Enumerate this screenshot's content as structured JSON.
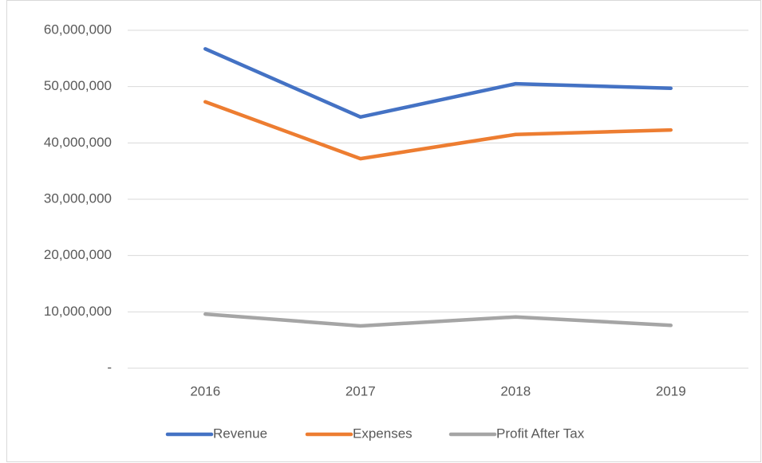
{
  "chart_data": {
    "type": "line",
    "categories": [
      "2016",
      "2017",
      "2018",
      "2019"
    ],
    "series": [
      {
        "name": "Revenue",
        "color": "#4472c4",
        "values": [
          56700000,
          44600000,
          50500000,
          49700000
        ]
      },
      {
        "name": "Expenses",
        "color": "#ed7d31",
        "values": [
          47300000,
          37200000,
          41500000,
          42300000
        ]
      },
      {
        "name": "Profit After Tax",
        "color": "#a5a5a5",
        "values": [
          9600000,
          7500000,
          9100000,
          7600000
        ]
      }
    ],
    "ylim": [
      0,
      60000000
    ],
    "yticks": [
      {
        "value": 0,
        "label": "-"
      },
      {
        "value": 10000000,
        "label": "10,000,000"
      },
      {
        "value": 20000000,
        "label": "20,000,000"
      },
      {
        "value": 30000000,
        "label": "30,000,000"
      },
      {
        "value": 40000000,
        "label": "40,000,000"
      },
      {
        "value": 50000000,
        "label": "50,000,000"
      },
      {
        "value": 60000000,
        "label": "60,000,000"
      }
    ],
    "grid": true,
    "legend": "bottom"
  }
}
